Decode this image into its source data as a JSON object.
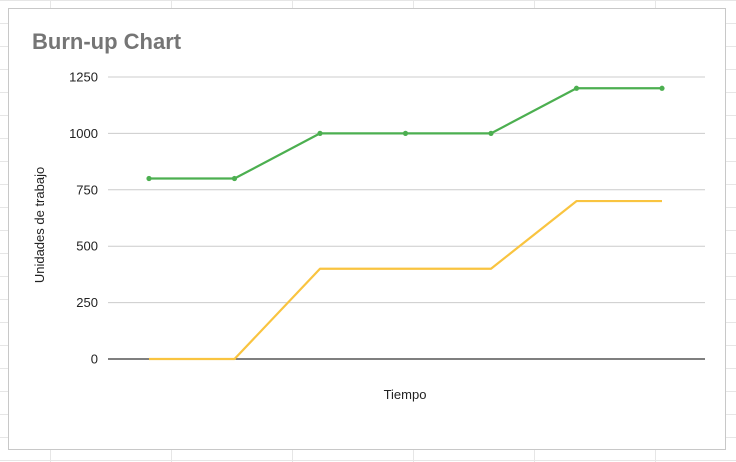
{
  "chart_data": {
    "type": "line",
    "title": "Burn-up Chart",
    "xlabel": "Tiempo",
    "ylabel": "Unidades de trabajo",
    "x": [
      1,
      2,
      3,
      4,
      5,
      6,
      7
    ],
    "ylim": [
      0,
      1250
    ],
    "yticks": [
      "0",
      "250",
      "500",
      "750",
      "1000",
      "1250"
    ],
    "grid": true,
    "series": [
      {
        "values": [
          800,
          800,
          1000,
          1000,
          1000,
          1200,
          1200
        ],
        "color": "#4caf50",
        "markers": true
      },
      {
        "values": [
          0,
          0,
          400,
          400,
          400,
          700,
          700
        ],
        "color": "#f9c440",
        "markers": false
      }
    ]
  }
}
